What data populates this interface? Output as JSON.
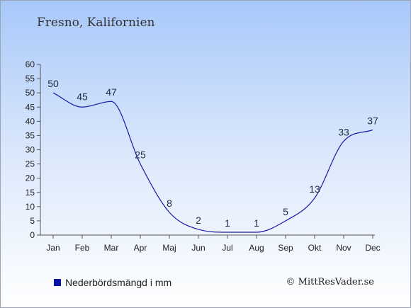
{
  "chart_data": {
    "type": "line",
    "title": "Fresno, Kalifornien",
    "categories": [
      "Jan",
      "Feb",
      "Mar",
      "Apr",
      "Maj",
      "Jun",
      "Jul",
      "Aug",
      "Sep",
      "Okt",
      "Nov",
      "Dec"
    ],
    "series": [
      {
        "name": "Nederbördsmängd i mm",
        "values": [
          50,
          45,
          47,
          25,
          8,
          2,
          1,
          1,
          5,
          13,
          33,
          37
        ],
        "color": "#1a1aa6"
      }
    ],
    "y_ticks": [
      0,
      5,
      10,
      15,
      20,
      25,
      30,
      35,
      40,
      45,
      50,
      55,
      60
    ],
    "ylim": [
      0,
      60
    ],
    "grid": false,
    "legend_position": "bottom-left",
    "xlabel": "",
    "ylabel": ""
  },
  "legend": {
    "label": "Nederbördsmängd i mm",
    "swatch_color": "#0a14a0"
  },
  "copyright": "© MittResVader.se"
}
